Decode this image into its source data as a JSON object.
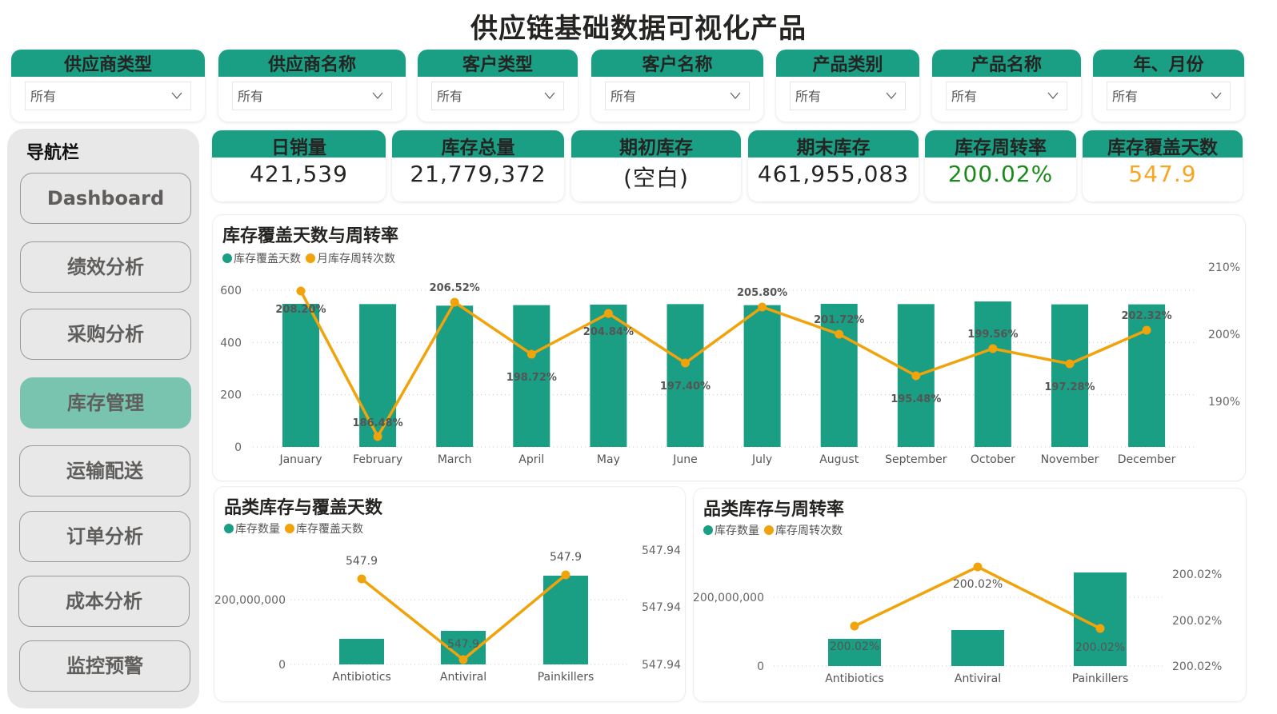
{
  "page": {
    "title": "供应链基础数据可视化产品"
  },
  "filters": [
    {
      "label": "供应商类型",
      "value": "所有"
    },
    {
      "label": "供应商名称",
      "value": "所有"
    },
    {
      "label": "客户类型",
      "value": "所有"
    },
    {
      "label": "客户名称",
      "value": "所有"
    },
    {
      "label": "产品类别",
      "value": "所有"
    },
    {
      "label": "产品名称",
      "value": "所有"
    },
    {
      "label": "年、月份",
      "value": "所有"
    }
  ],
  "nav": {
    "title": "导航栏",
    "items": [
      {
        "label": "Dashboard",
        "active": false
      },
      {
        "label": "绩效分析",
        "active": false
      },
      {
        "label": "采购分析",
        "active": false
      },
      {
        "label": "库存管理",
        "active": true
      },
      {
        "label": "运输配送",
        "active": false
      },
      {
        "label": "订单分析",
        "active": false
      },
      {
        "label": "成本分析",
        "active": false
      },
      {
        "label": "监控预警",
        "active": false
      }
    ]
  },
  "kpis": [
    {
      "label": "日销量",
      "value": "421,539",
      "color": "#252423"
    },
    {
      "label": "库存总量",
      "value": "21,779,372",
      "color": "#252423"
    },
    {
      "label": "期初库存",
      "value": "(空白)",
      "color": "#252423"
    },
    {
      "label": "期末库存",
      "value": "461,955,083",
      "color": "#252423"
    },
    {
      "label": "库存周转率",
      "value": "200.02%",
      "color": "#1a8a1a"
    },
    {
      "label": "库存覆盖天数",
      "value": "547.9",
      "color": "#f5a623"
    }
  ],
  "colors": {
    "bar": "#1a9e84",
    "line": "#f0a30a",
    "header": "#1a9e84",
    "nav_active": "#79c4ae"
  },
  "chart_data": [
    {
      "type": "bar+line",
      "title": "库存覆盖天数与周转率",
      "legend": [
        "库存覆盖天数",
        "月库存周转次数"
      ],
      "categories": [
        "January",
        "February",
        "March",
        "April",
        "May",
        "June",
        "July",
        "August",
        "September",
        "October",
        "November",
        "December"
      ],
      "series": [
        {
          "name": "库存覆盖天数",
          "type": "bar",
          "axis": "left",
          "values": [
            548,
            547,
            541,
            543,
            545,
            547,
            543,
            548,
            547,
            557,
            546,
            546
          ]
        },
        {
          "name": "月库存周转次数",
          "type": "line",
          "axis": "right",
          "values": [
            208.2,
            186.48,
            206.52,
            198.72,
            204.84,
            197.4,
            205.8,
            201.72,
            195.48,
            199.56,
            197.28,
            202.32
          ],
          "labels": [
            "208.20%",
            "186.48%",
            "206.52%",
            "198.72%",
            "204.84%",
            "197.40%",
            "205.80%",
            "201.72%",
            "195.48%",
            "199.56%",
            "197.28%",
            "202.32%"
          ]
        }
      ],
      "left_axis": {
        "ticks": [
          "0",
          "200",
          "400",
          "600"
        ],
        "range": [
          0,
          600
        ]
      },
      "right_axis": {
        "ticks": [
          "190%",
          "200%",
          "210%"
        ]
      },
      "grid": true,
      "legend_position": "top-left"
    },
    {
      "type": "bar+line",
      "title": "品类库存与覆盖天数",
      "legend": [
        "库存数量",
        "库存覆盖天数"
      ],
      "categories": [
        "Antibiotics",
        "Antiviral",
        "Painkillers"
      ],
      "series": [
        {
          "name": "库存数量",
          "type": "bar",
          "axis": "left",
          "values": [
            80000000,
            105000000,
            270000000
          ]
        },
        {
          "name": "库存覆盖天数",
          "type": "line",
          "axis": "right",
          "values": [
            547.9,
            547.9,
            547.9
          ],
          "labels": [
            "547.9",
            "547.9",
            "547.9"
          ]
        }
      ],
      "left_axis": {
        "ticks": [
          "0",
          "200,000,000"
        ]
      },
      "right_axis": {
        "ticks": [
          "547.94",
          "547.94",
          "547.94"
        ]
      },
      "grid": true
    },
    {
      "type": "bar+line",
      "title": "品类库存与周转率",
      "legend": [
        "库存数量",
        "库存周转次数"
      ],
      "categories": [
        "Antibiotics",
        "Antiviral",
        "Painkillers"
      ],
      "series": [
        {
          "name": "库存数量",
          "type": "bar",
          "axis": "left",
          "values": [
            80000000,
            105000000,
            270000000
          ]
        },
        {
          "name": "库存周转次数",
          "type": "line",
          "axis": "right",
          "values": [
            200.02,
            200.02,
            200.02
          ],
          "labels": [
            "200.02%",
            "200.02%",
            "200.02%"
          ]
        }
      ],
      "left_axis": {
        "ticks": [
          "0",
          "200,000,000"
        ]
      },
      "right_axis": {
        "ticks": [
          "200.02%",
          "200.02%",
          "200.02%"
        ]
      },
      "grid": true
    }
  ]
}
